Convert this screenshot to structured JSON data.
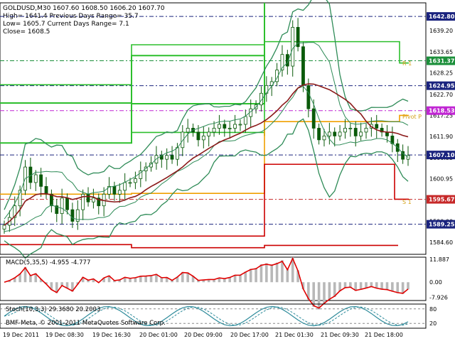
{
  "info": {
    "line1": "GOLDUSD,M30  1607.60 1608.50 1606.20 1607.70",
    "line2": "High= 1641.4    Previous Days Range= 35.7",
    "line3": "Low= 1605.7    Current Days Range= 7.1",
    "line4": "Close= 1608.5"
  },
  "chart_data": [
    {
      "type": "line",
      "title": "GOLDUSD,M30",
      "ylim": [
        1581.5,
        1646.3
      ],
      "price_axis_ticks": [
        "1639.20",
        "1633.65",
        "1628.25",
        "1622.70",
        "1617.25",
        "1611.90",
        "1606.35",
        "1600.95",
        "1595.40",
        "1590.00",
        "1584.60"
      ],
      "highlighted_prices": [
        {
          "label": "1642.80",
          "value": 1642.8,
          "color": "#1a237e"
        },
        {
          "label": "1631.37",
          "value": 1631.37,
          "color": "#1b8f3a"
        },
        {
          "label": "1624.95",
          "value": 1624.95,
          "color": "#1a237e"
        },
        {
          "label": "1618.53",
          "value": 1618.53,
          "color": "#c026d3"
        },
        {
          "label": "1607.10",
          "value": 1607.1,
          "color": "#1a237e"
        },
        {
          "label": "1595.67",
          "value": 1595.67,
          "color": "#c62828"
        },
        {
          "label": "1589.25",
          "value": 1589.25,
          "color": "#1a237e"
        }
      ],
      "pivot_labels": [
        {
          "label": "R 1",
          "value": 1630.2,
          "color": "#d4a017"
        },
        {
          "label": "Pivot P",
          "value": 1616.5,
          "color": "#d4a017"
        },
        {
          "label": "S 1",
          "value": 1594.5,
          "color": "#d4a017"
        }
      ],
      "close_series": [
        1589,
        1591,
        1594,
        1598,
        1604,
        1600,
        1602,
        1599,
        1597,
        1594,
        1592,
        1596,
        1593,
        1590,
        1593,
        1597,
        1595,
        1596,
        1594,
        1597,
        1599,
        1597,
        1598,
        1600,
        1600,
        1601,
        1603,
        1604,
        1605,
        1607,
        1606,
        1607,
        1606,
        1609,
        1613,
        1614,
        1613,
        1611,
        1612,
        1613,
        1614,
        1615,
        1614,
        1614,
        1615,
        1615,
        1617,
        1619,
        1620,
        1623,
        1625,
        1626,
        1629,
        1633,
        1630,
        1640,
        1635,
        1625,
        1619,
        1614,
        1611,
        1612,
        1613,
        1612,
        1613,
        1614,
        1614,
        1612,
        1613,
        1614,
        1615,
        1614,
        1613,
        1612,
        1610,
        1608,
        1606,
        1607
      ],
      "series": [
        {
          "name": "",
          "values": []
        }
      ]
    },
    {
      "type": "bar",
      "title": "MACD(5,35,5) -4.955 -4.777",
      "ylim": [
        -9.5,
        13.0
      ],
      "price_axis_ticks": [
        "11.887",
        "0.00",
        "-7.926"
      ]
    },
    {
      "type": "line",
      "title": "Stoch(10,3,3) 29.3680 20.2003",
      "ylim": [
        0,
        100
      ],
      "price_axis_ticks": [
        "80",
        "20"
      ]
    }
  ],
  "time_axis": [
    "19 Dec 2011",
    "19 Dec 08:30",
    "19 Dec 16:30",
    "20 Dec 01:00",
    "20 Dec 09:00",
    "20 Dec 17:00",
    "21 Dec 01:30",
    "21 Dec 09:30",
    "21 Dec 18:00"
  ],
  "macd_label": "MACD(5,35,5) -4.955 -4.777",
  "stoch_label": "Stoch(10,3,3) 29.3680 20.2003",
  "watermark": "BMF-Meta, © 2001-2011 MetaQuotes Software Corp.",
  "colors": {
    "candle": "#0a5a0a",
    "bands": "#2e8b57",
    "ma": "#8b1a1a",
    "resistance": "#2dbf2d",
    "pivot": "#f0a000",
    "support": "#cc0000"
  }
}
